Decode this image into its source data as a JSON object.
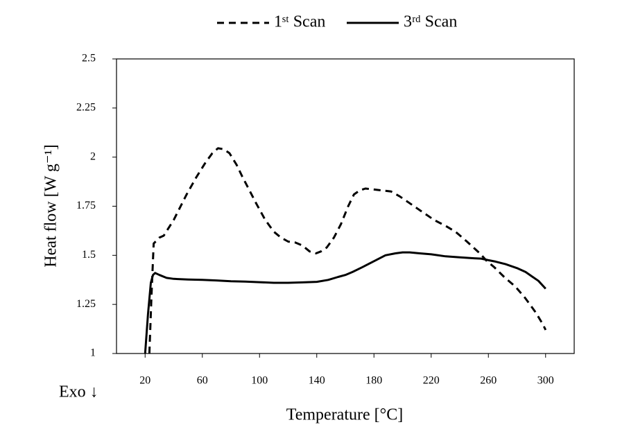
{
  "chart_data": {
    "type": "line",
    "x_label": "Temperature [°C]",
    "y_label": "Heat flow [W g⁻¹]",
    "annotation": "Exo ↓",
    "xlim": [
      0,
      320
    ],
    "xticks": [
      20,
      60,
      100,
      140,
      180,
      220,
      260,
      300
    ],
    "ylim": [
      1,
      2.5
    ],
    "yticks": [
      1,
      1.25,
      1.5,
      1.75,
      2,
      2.25,
      2.5
    ],
    "grid": false,
    "legend": "top",
    "series": [
      {
        "name": "1ˢᵗ Scan",
        "color": "#000000",
        "dash": true,
        "x": [
          23,
          24.5,
          26,
          30,
          33,
          40,
          49,
          56,
          62,
          67,
          71,
          75,
          79,
          84,
          88,
          93,
          98,
          104,
          110,
          115,
          120,
          125,
          130,
          135,
          139.5,
          143,
          147,
          152,
          157,
          162,
          166,
          170,
          174,
          180,
          186,
          192,
          198,
          204,
          210,
          216,
          222,
          230,
          237,
          245,
          254,
          259,
          264,
          271,
          279,
          286,
          293,
          298,
          300
        ],
        "y": [
          1,
          1.3,
          1.56,
          1.59,
          1.6,
          1.68,
          1.81,
          1.9,
          1.97,
          2.02,
          2.045,
          2.04,
          2.02,
          1.96,
          1.9,
          1.83,
          1.76,
          1.68,
          1.62,
          1.59,
          1.57,
          1.565,
          1.55,
          1.52,
          1.51,
          1.52,
          1.54,
          1.59,
          1.66,
          1.75,
          1.81,
          1.83,
          1.84,
          1.835,
          1.83,
          1.825,
          1.8,
          1.77,
          1.74,
          1.71,
          1.68,
          1.65,
          1.62,
          1.57,
          1.51,
          1.47,
          1.44,
          1.39,
          1.34,
          1.28,
          1.21,
          1.15,
          1.12
        ]
      },
      {
        "name": "3ʳᵈ Scan",
        "color": "#000000",
        "dash": false,
        "x": [
          20,
          22,
          24,
          25.5,
          27,
          30,
          35,
          40,
          50,
          60,
          70,
          80,
          90,
          100,
          110,
          120,
          130,
          140,
          148,
          155,
          160,
          165,
          172,
          180,
          188,
          195,
          200,
          205,
          212,
          220,
          230,
          240,
          250,
          255,
          260,
          265,
          272,
          280,
          286,
          290,
          295,
          300
        ],
        "y": [
          1,
          1.2,
          1.36,
          1.4,
          1.41,
          1.4,
          1.385,
          1.38,
          1.377,
          1.375,
          1.372,
          1.368,
          1.366,
          1.363,
          1.36,
          1.36,
          1.362,
          1.365,
          1.375,
          1.39,
          1.4,
          1.415,
          1.44,
          1.47,
          1.5,
          1.51,
          1.515,
          1.515,
          1.51,
          1.505,
          1.495,
          1.49,
          1.485,
          1.483,
          1.475,
          1.468,
          1.455,
          1.435,
          1.415,
          1.395,
          1.37,
          1.33
        ]
      }
    ]
  }
}
